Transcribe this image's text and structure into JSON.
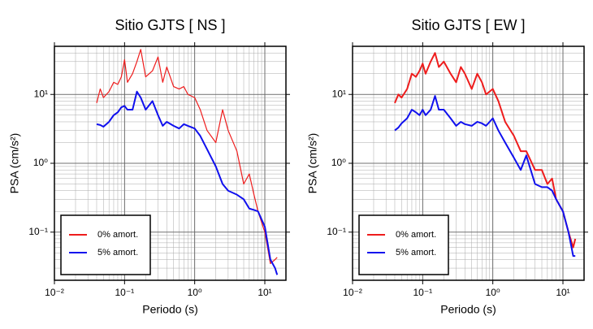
{
  "chart_data": [
    {
      "type": "line",
      "title": "Sitio GJTS [ NS ]",
      "xlabel": "Periodo (s)",
      "ylabel": "PSA (cm/s²)",
      "log_x": true,
      "log_y": true,
      "grid": true,
      "legend": "lower left",
      "xlim": [
        0.01,
        20
      ],
      "ylim": [
        0.02,
        50
      ],
      "xticks": [
        {
          "value": 0.01,
          "label": "10⁻²"
        },
        {
          "value": 0.1,
          "label": "10⁻¹"
        },
        {
          "value": 1,
          "label": "10⁰"
        },
        {
          "value": 10,
          "label": "10¹"
        }
      ],
      "yticks": [
        {
          "value": 0.1,
          "label": "10⁻¹"
        },
        {
          "value": 1,
          "label": "10⁰"
        },
        {
          "value": 10,
          "label": "10¹"
        }
      ],
      "x": [
        0.04,
        0.045,
        0.05,
        0.06,
        0.07,
        0.08,
        0.09,
        0.1,
        0.11,
        0.13,
        0.15,
        0.17,
        0.2,
        0.25,
        0.3,
        0.35,
        0.4,
        0.5,
        0.6,
        0.7,
        0.8,
        1.0,
        1.2,
        1.5,
        2,
        2.5,
        3,
        4,
        5,
        6,
        7,
        8,
        10,
        12,
        14,
        15
      ],
      "series": [
        {
          "name": "0% amort.",
          "color": "#ee1c1c",
          "width": 1.2,
          "values": [
            7.5,
            12,
            9,
            11,
            15,
            14,
            18,
            32,
            15,
            20,
            30,
            45,
            18,
            22,
            35,
            15,
            25,
            13,
            12,
            13,
            10,
            9,
            6,
            3,
            2,
            6,
            3,
            1.5,
            0.5,
            0.7,
            0.35,
            0.2,
            0.1,
            0.035,
            0.04,
            0.043
          ]
        },
        {
          "name": "5% amort.",
          "color": "#1010ee",
          "width": 2,
          "values": [
            3.7,
            3.6,
            3.4,
            4,
            5,
            5.5,
            6.5,
            6.8,
            6,
            6,
            11,
            9,
            6,
            8,
            5,
            3.5,
            4,
            3.5,
            3.2,
            3.7,
            3.5,
            3.2,
            2.5,
            1.6,
            0.9,
            0.5,
            0.4,
            0.35,
            0.3,
            0.22,
            0.21,
            0.2,
            0.12,
            0.04,
            0.03,
            0.024
          ]
        }
      ]
    },
    {
      "type": "line",
      "title": "Sitio GJTS [ EW ]",
      "xlabel": "Periodo (s)",
      "ylabel": "PSA (cm/s²)",
      "log_x": true,
      "log_y": true,
      "grid": true,
      "legend": "lower left",
      "xlim": [
        0.01,
        20
      ],
      "ylim": [
        0.02,
        50
      ],
      "xticks": [
        {
          "value": 0.01,
          "label": "10⁻²"
        },
        {
          "value": 0.1,
          "label": "10⁻¹"
        },
        {
          "value": 1,
          "label": "10⁰"
        },
        {
          "value": 10,
          "label": "10¹"
        }
      ],
      "yticks": [
        {
          "value": 0.1,
          "label": "10⁻¹"
        },
        {
          "value": 1,
          "label": "10⁰"
        },
        {
          "value": 10,
          "label": "10¹"
        }
      ],
      "x": [
        0.04,
        0.045,
        0.05,
        0.06,
        0.07,
        0.08,
        0.09,
        0.1,
        0.11,
        0.13,
        0.15,
        0.17,
        0.2,
        0.25,
        0.3,
        0.35,
        0.4,
        0.5,
        0.6,
        0.7,
        0.8,
        1.0,
        1.2,
        1.5,
        2,
        2.5,
        3,
        4,
        5,
        6,
        7,
        8,
        10,
        12,
        14,
        15
      ],
      "series": [
        {
          "name": "0% amort.",
          "color": "#ee1c1c",
          "width": 2,
          "values": [
            7.5,
            10,
            9,
            12,
            20,
            18,
            22,
            28,
            20,
            30,
            40,
            25,
            30,
            20,
            15,
            25,
            20,
            12,
            20,
            15,
            10,
            12,
            8,
            4,
            2.5,
            1.5,
            1.5,
            0.8,
            0.8,
            0.5,
            0.6,
            0.3,
            0.2,
            0.1,
            0.06,
            0.08
          ]
        },
        {
          "name": "5% amort.",
          "color": "#1010ee",
          "width": 2,
          "values": [
            3,
            3.3,
            3.8,
            4.5,
            6,
            5.5,
            5,
            6,
            5,
            6,
            9.5,
            6,
            6,
            4.5,
            3.5,
            4,
            3.7,
            3.5,
            4,
            3.8,
            3.5,
            4.5,
            3,
            2,
            1.2,
            0.8,
            1.3,
            0.5,
            0.45,
            0.45,
            0.4,
            0.3,
            0.2,
            0.1,
            0.045,
            0.045
          ]
        }
      ]
    }
  ]
}
